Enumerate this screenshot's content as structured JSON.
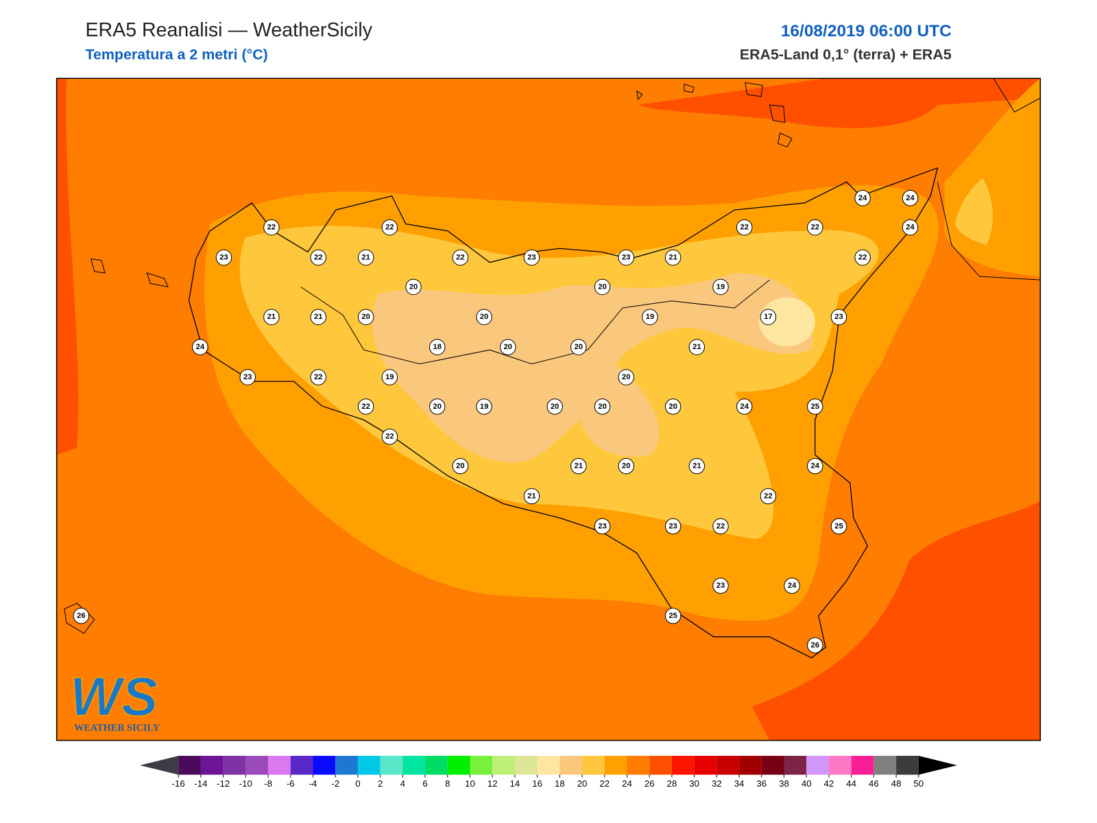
{
  "header": {
    "title": "ERA5 Reanalisi — WeatherSicily",
    "subtitle": "Temperatura a 2 metri (°C)",
    "date": "16/08/2019 06:00 UTC",
    "source": "ERA5-Land 0,1° (terra) + ERA5"
  },
  "map": {
    "stations": [
      22,
      22,
      22,
      23,
      23,
      21,
      22,
      22,
      24,
      24,
      24,
      22,
      23,
      22,
      21,
      20,
      20,
      19,
      21,
      21,
      20,
      20,
      19,
      17,
      23,
      24,
      18,
      20,
      20,
      21,
      23,
      22,
      19,
      20,
      22,
      20,
      19,
      20,
      20,
      20,
      24,
      25,
      22,
      20,
      21,
      20,
      21,
      24,
      21,
      22,
      23,
      23,
      22,
      25,
      23,
      24,
      26,
      25,
      26
    ]
  },
  "colorbar": {
    "ticks": [
      -16,
      -14,
      -12,
      -10,
      -8,
      -6,
      -4,
      -2,
      0,
      2,
      4,
      6,
      8,
      10,
      12,
      14,
      16,
      18,
      20,
      22,
      24,
      26,
      28,
      30,
      32,
      34,
      36,
      38,
      40,
      42,
      44,
      46,
      48,
      50
    ],
    "colors": [
      "#4b0a5a",
      "#6e1496",
      "#7d32a5",
      "#9b4bb9",
      "#dc78f0",
      "#5a28c8",
      "#0a0aff",
      "#1e78d2",
      "#00c8e6",
      "#5ae6c8",
      "#00e6a0",
      "#00dc64",
      "#00f000",
      "#78f03c",
      "#bef078",
      "#dce696",
      "#ffe6a0",
      "#fac87d",
      "#ffc83c",
      "#ffa000",
      "#ff7d00",
      "#ff5000",
      "#ff1400",
      "#e60000",
      "#c80000",
      "#a00000",
      "#780014",
      "#7d2346",
      "#d296fa",
      "#ff78c8",
      "#fa1e96",
      "#808080",
      "#3c3c3c"
    ],
    "under_color": "#3c3c46",
    "over_color": "#000000"
  },
  "logo": {
    "mark": "WS",
    "name": "WEATHER SICILY"
  }
}
